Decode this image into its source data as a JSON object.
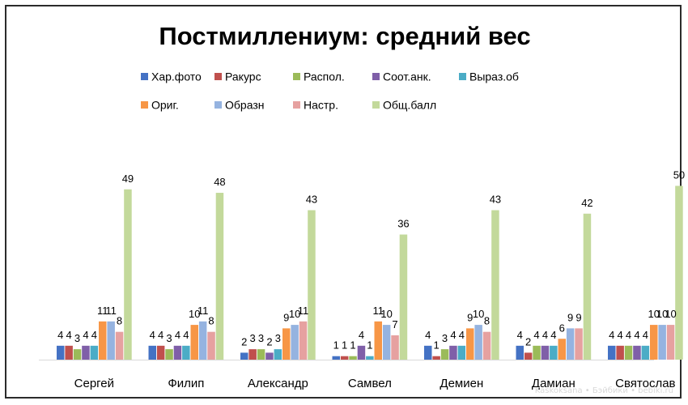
{
  "chart_data": {
    "type": "bar",
    "title": "Постмиллениум: средний вес",
    "categories": [
      "Сергей",
      "Филип",
      "Александр",
      "Самвел",
      "Демиен",
      "Дамиан",
      "Святослав"
    ],
    "series": [
      {
        "name": "Хар.фото",
        "color": "#4472c4",
        "values": [
          4,
          4,
          2,
          1,
          4,
          4,
          4
        ]
      },
      {
        "name": "Ракурс",
        "color": "#c0504d",
        "values": [
          4,
          4,
          3,
          1,
          1,
          2,
          4
        ]
      },
      {
        "name": "Распол.",
        "color": "#9bbb59",
        "values": [
          3,
          3,
          3,
          1,
          3,
          4,
          4
        ]
      },
      {
        "name": "Соот.анк.",
        "color": "#7f5fa8",
        "values": [
          4,
          4,
          2,
          4,
          4,
          4,
          4
        ]
      },
      {
        "name": "Выраз.об",
        "color": "#4bacc6",
        "values": [
          4,
          4,
          3,
          1,
          4,
          4,
          4
        ]
      },
      {
        "name": "Ориг.",
        "color": "#f79646",
        "values": [
          11,
          10,
          9,
          11,
          9,
          6,
          10
        ]
      },
      {
        "name": "Образн",
        "color": "#95b3e0",
        "values": [
          11,
          11,
          10,
          10,
          10,
          9,
          10
        ]
      },
      {
        "name": "Настр.",
        "color": "#e6a1a0",
        "values": [
          8,
          8,
          11,
          7,
          8,
          9,
          10
        ]
      },
      {
        "name": "Общ.балл",
        "color": "#c3d99b",
        "values": [
          49,
          48,
          43,
          36,
          43,
          42,
          50
        ]
      }
    ],
    "ylim": [
      0,
      55
    ],
    "xlabel": "",
    "ylabel": "",
    "legend": "top",
    "grid": false
  },
  "credit": "Kaskoksana • Бэйбики • bebiki.ru"
}
